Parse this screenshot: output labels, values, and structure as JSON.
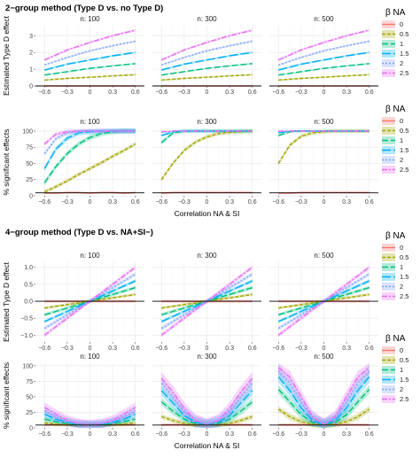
{
  "figure": {
    "section_titles": [
      "2−group method (Type D vs. no Type D)",
      "4−group method (Type D vs. NA+SI−)"
    ]
  },
  "legend": {
    "title": "β NA",
    "entries": [
      {
        "label": "0",
        "color": "#F8766D",
        "dash": "solid"
      },
      {
        "label": "0.5",
        "color": "#A3A500",
        "dash": "4,2"
      },
      {
        "label": "1",
        "color": "#00BF7D",
        "dash": "7,3"
      },
      {
        "label": "1.5",
        "color": "#00B0F6",
        "dash": "10,3"
      },
      {
        "label": "2",
        "color": "#7EA2FF",
        "dash": "2,2"
      },
      {
        "label": "2.5",
        "color": "#E76BF3",
        "dash": "6,2,2,2"
      }
    ]
  },
  "chart_data": [
    {
      "type": "line",
      "section": "2−group method (Type D vs. no Type D)",
      "ylabel": "Estimated Type D effect",
      "xlabel": "",
      "ylim": [
        0,
        3.6
      ],
      "yticks": [
        0,
        1,
        2,
        3
      ],
      "xlim": [
        -0.72,
        0.72
      ],
      "xticks": [
        "−0.6",
        "−0.3",
        "0",
        "0.3",
        "0.6"
      ],
      "x": [
        -0.6,
        -0.3,
        0,
        0.3,
        0.6
      ],
      "facets": [
        "n: 100",
        "n: 300",
        "n: 500"
      ],
      "series": [
        {
          "name": "0",
          "values": [
            0.0,
            0.0,
            0.0,
            0.0,
            0.0
          ],
          "band": 0.05
        },
        {
          "name": "0.5",
          "values": [
            0.35,
            0.45,
            0.52,
            0.6,
            0.67
          ],
          "band": 0.05
        },
        {
          "name": "1",
          "values": [
            0.65,
            0.85,
            1.05,
            1.2,
            1.33
          ],
          "band": 0.05
        },
        {
          "name": "1.5",
          "values": [
            0.95,
            1.3,
            1.55,
            1.8,
            2.0
          ],
          "band": 0.06
        },
        {
          "name": "2",
          "values": [
            1.25,
            1.7,
            2.1,
            2.4,
            2.67
          ],
          "band": 0.06
        },
        {
          "name": "2.5",
          "values": [
            1.55,
            2.15,
            2.6,
            3.0,
            3.33
          ],
          "band": 0.07
        }
      ]
    },
    {
      "type": "line",
      "section": "2−group method (Type D vs. no Type D)",
      "ylabel": "% significant effects",
      "xlabel": "Correlation NA & SI",
      "ylim": [
        0,
        104
      ],
      "yticks": [
        0,
        25,
        50,
        75,
        100
      ],
      "xlim": [
        -0.72,
        0.72
      ],
      "xticks": [
        "−0.6",
        "−0.3",
        "0",
        "0.3",
        "0.6"
      ],
      "x": [
        -0.6,
        -0.45,
        -0.3,
        -0.15,
        0,
        0.15,
        0.3,
        0.45,
        0.6
      ],
      "facets": [
        "n: 100",
        "n: 300",
        "n: 500"
      ],
      "panels": [
        [
          {
            "name": "0",
            "values": [
              4,
              4,
              5,
              5,
              4,
              5,
              5,
              4,
              5
            ],
            "band": 1.5
          },
          {
            "name": "0.5",
            "values": [
              6,
              14,
              23,
              33,
              42,
              51,
              61,
              70,
              80
            ],
            "band": 3
          },
          {
            "name": "1",
            "values": [
              20,
              45,
              65,
              80,
              90,
              96,
              99,
              100,
              100
            ],
            "band": 4
          },
          {
            "name": "1.5",
            "values": [
              42,
              72,
              89,
              97,
              99,
              100,
              100,
              100,
              100
            ],
            "band": 4
          },
          {
            "name": "2",
            "values": [
              65,
              88,
              97,
              100,
              100,
              100,
              100,
              100,
              100
            ],
            "band": 3
          },
          {
            "name": "2.5",
            "values": [
              80,
              95,
              99,
              100,
              100,
              100,
              100,
              100,
              100
            ],
            "band": 3
          }
        ],
        [
          {
            "name": "0",
            "values": [
              4,
              5,
              5,
              5,
              5,
              5,
              5,
              5,
              5
            ],
            "band": 1.5
          },
          {
            "name": "0.5",
            "values": [
              25,
              50,
              70,
              83,
              91,
              96,
              98,
              99,
              100
            ],
            "band": 3
          },
          {
            "name": "1",
            "values": [
              82,
              97,
              100,
              100,
              100,
              100,
              100,
              100,
              100
            ],
            "band": 3
          },
          {
            "name": "1.5",
            "values": [
              93,
              99,
              100,
              100,
              100,
              100,
              100,
              100,
              100
            ],
            "band": 2
          },
          {
            "name": "2",
            "values": [
              98,
              100,
              100,
              100,
              100,
              100,
              100,
              100,
              100
            ],
            "band": 1
          },
          {
            "name": "2.5",
            "values": [
              99,
              100,
              100,
              100,
              100,
              100,
              100,
              100,
              100
            ],
            "band": 1
          }
        ],
        [
          {
            "name": "0",
            "values": [
              4,
              4,
              5,
              5,
              5,
              5,
              5,
              5,
              5
            ],
            "band": 1.5
          },
          {
            "name": "0.5",
            "values": [
              50,
              78,
              92,
              97,
              99,
              100,
              100,
              100,
              100
            ],
            "band": 3
          },
          {
            "name": "1",
            "values": [
              93,
              99,
              100,
              100,
              100,
              100,
              100,
              100,
              100
            ],
            "band": 2
          },
          {
            "name": "1.5",
            "values": [
              97,
              100,
              100,
              100,
              100,
              100,
              100,
              100,
              100
            ],
            "band": 1
          },
          {
            "name": "2",
            "values": [
              99,
              100,
              100,
              100,
              100,
              100,
              100,
              100,
              100
            ],
            "band": 1
          },
          {
            "name": "2.5",
            "values": [
              100,
              100,
              100,
              100,
              100,
              100,
              100,
              100,
              100
            ],
            "band": 1
          }
        ]
      ]
    },
    {
      "type": "line",
      "section": "4−group method (Type D vs. NA+SI−)",
      "ylabel": "Estimated Type D effect",
      "xlabel": "",
      "ylim": [
        -1.2,
        1.15
      ],
      "yticks": [
        -1.0,
        -0.5,
        0.0,
        0.5,
        1.0
      ],
      "ytick_labels": [
        "−1.0",
        "−0.5",
        "0.0",
        "0.5",
        "1.0"
      ],
      "xlim": [
        -0.72,
        0.72
      ],
      "xticks": [
        "−0.6",
        "−0.3",
        "0",
        "0.3",
        "0.6"
      ],
      "x": [
        -0.6,
        0.6
      ],
      "facets": [
        "n: 100",
        "n: 300",
        "n: 500"
      ],
      "series": [
        {
          "name": "0",
          "values": [
            0.0,
            0.0
          ],
          "band": 0.04
        },
        {
          "name": "0.5",
          "values": [
            -0.2,
            0.2
          ],
          "band": 0.04
        },
        {
          "name": "1",
          "values": [
            -0.4,
            0.4
          ],
          "band": 0.05
        },
        {
          "name": "1.5",
          "values": [
            -0.6,
            0.6
          ],
          "band": 0.05
        },
        {
          "name": "2",
          "values": [
            -0.8,
            0.8
          ],
          "band": 0.06
        },
        {
          "name": "2.5",
          "values": [
            -1.0,
            1.0
          ],
          "band": 0.06
        }
      ]
    },
    {
      "type": "line",
      "section": "4−group method (Type D vs. NA+SI−)",
      "ylabel": "% significant effects",
      "xlabel": "Correlation NA & SI",
      "ylim": [
        0,
        104
      ],
      "yticks": [
        0,
        25,
        50,
        75,
        100
      ],
      "xlim": [
        -0.72,
        0.72
      ],
      "xticks": [
        "−0.6",
        "−0.3",
        "0",
        "0.3",
        "0.6"
      ],
      "x": [
        -0.6,
        -0.45,
        -0.3,
        -0.15,
        0,
        0.15,
        0.3,
        0.45,
        0.6
      ],
      "facets": [
        "n: 100",
        "n: 300",
        "n: 500"
      ],
      "panels": [
        [
          {
            "name": "0",
            "values": [
              5,
              5,
              5,
              5,
              5,
              5,
              5,
              5,
              5
            ],
            "band": 2
          },
          {
            "name": "0.5",
            "values": [
              8,
              6,
              5,
              5,
              5,
              5,
              5,
              6,
              8
            ],
            "band": 3
          },
          {
            "name": "1",
            "values": [
              14,
              10,
              7,
              5,
              5,
              5,
              7,
              10,
              14
            ],
            "band": 4
          },
          {
            "name": "1.5",
            "values": [
              22,
              14,
              9,
              6,
              5,
              6,
              9,
              14,
              22
            ],
            "band": 6
          },
          {
            "name": "2",
            "values": [
              28,
              18,
              10,
              6,
              5,
              6,
              10,
              18,
              28
            ],
            "band": 7
          },
          {
            "name": "2.5",
            "values": [
              33,
              22,
              12,
              7,
              5,
              7,
              12,
              22,
              33
            ],
            "band": 8
          }
        ],
        [
          {
            "name": "0",
            "values": [
              5,
              5,
              5,
              5,
              5,
              5,
              5,
              5,
              5
            ],
            "band": 2
          },
          {
            "name": "0.5",
            "values": [
              18,
              12,
              7,
              5,
              5,
              5,
              7,
              12,
              18
            ],
            "band": 4
          },
          {
            "name": "1",
            "values": [
              42,
              27,
              14,
              7,
              5,
              7,
              14,
              27,
              42
            ],
            "band": 6
          },
          {
            "name": "1.5",
            "values": [
              60,
              40,
              20,
              9,
              5,
              9,
              20,
              40,
              60
            ],
            "band": 8
          },
          {
            "name": "2",
            "values": [
              72,
              50,
              26,
              11,
              5,
              11,
              26,
              50,
              72
            ],
            "band": 9
          },
          {
            "name": "2.5",
            "values": [
              80,
              58,
              31,
              12,
              5,
              12,
              31,
              58,
              80
            ],
            "band": 10
          }
        ],
        [
          {
            "name": "0",
            "values": [
              5,
              5,
              5,
              5,
              5,
              5,
              5,
              5,
              5
            ],
            "band": 2
          },
          {
            "name": "0.5",
            "values": [
              30,
              18,
              10,
              6,
              5,
              6,
              10,
              18,
              30
            ],
            "band": 5
          },
          {
            "name": "1",
            "values": [
              62,
              42,
              21,
              9,
              5,
              9,
              21,
              42,
              62
            ],
            "band": 7
          },
          {
            "name": "1.5",
            "values": [
              82,
              60,
              32,
              12,
              5,
              12,
              32,
              60,
              82
            ],
            "band": 9
          },
          {
            "name": "2",
            "values": [
              92,
              72,
              42,
              15,
              5,
              15,
              42,
              72,
              92
            ],
            "band": 10
          },
          {
            "name": "2.5",
            "values": [
              97,
              82,
              50,
              18,
              5,
              18,
              50,
              82,
              97
            ],
            "band": 10
          }
        ]
      ]
    }
  ]
}
